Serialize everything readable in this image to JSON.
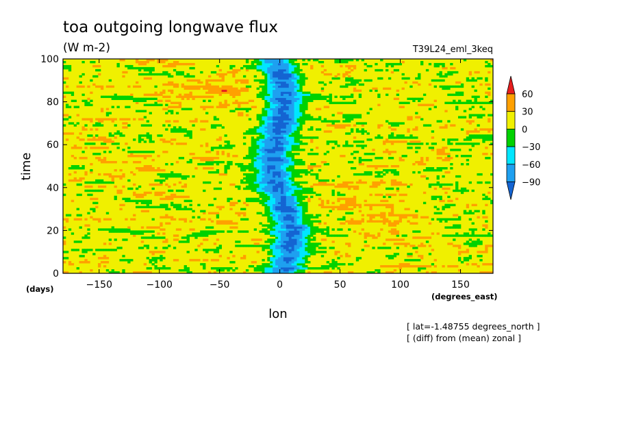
{
  "chart_data": {
    "type": "heatmap",
    "title": "toa outgoing longwave flux",
    "units": "(W m-2)",
    "run_label": "T39L24_eml_3keq",
    "xlabel": "lon",
    "xunits": "(degrees_east)",
    "ylabel": "time",
    "yunits": "(days)",
    "xlim": [
      -180,
      177
    ],
    "ylim": [
      0,
      100
    ],
    "xticks": [
      -150,
      -100,
      -50,
      0,
      50,
      100,
      150
    ],
    "yticks": [
      0,
      20,
      40,
      60,
      80,
      100
    ],
    "xtick_labels": [
      "-150",
      "-100",
      "-50",
      "0",
      "50",
      "100",
      "150"
    ],
    "ytick_labels": [
      "0",
      "20",
      "40",
      "60",
      "80",
      "100"
    ],
    "annotations": [
      "[ lat=-1.48755 degrees_north ]",
      "[ (diff) from (mean) zonal ]"
    ],
    "colorbar": {
      "levels": [
        -90,
        -60,
        -30,
        0,
        30,
        60
      ],
      "labels": [
        "60",
        "30",
        "0",
        "-30",
        "-60",
        "-90"
      ],
      "colors": [
        "#1464d2",
        "#1ea0f0",
        "#00e6ff",
        "#00d200",
        "#f0f000",
        "#ffa000",
        "#e61e1e"
      ],
      "extend": "both"
    },
    "features": {
      "negative_band_center_lon": 2,
      "typical_range": [
        -90,
        60
      ],
      "background": "mostly +0 to +30 with streaks of -30 to -60 and scattered >60"
    }
  }
}
